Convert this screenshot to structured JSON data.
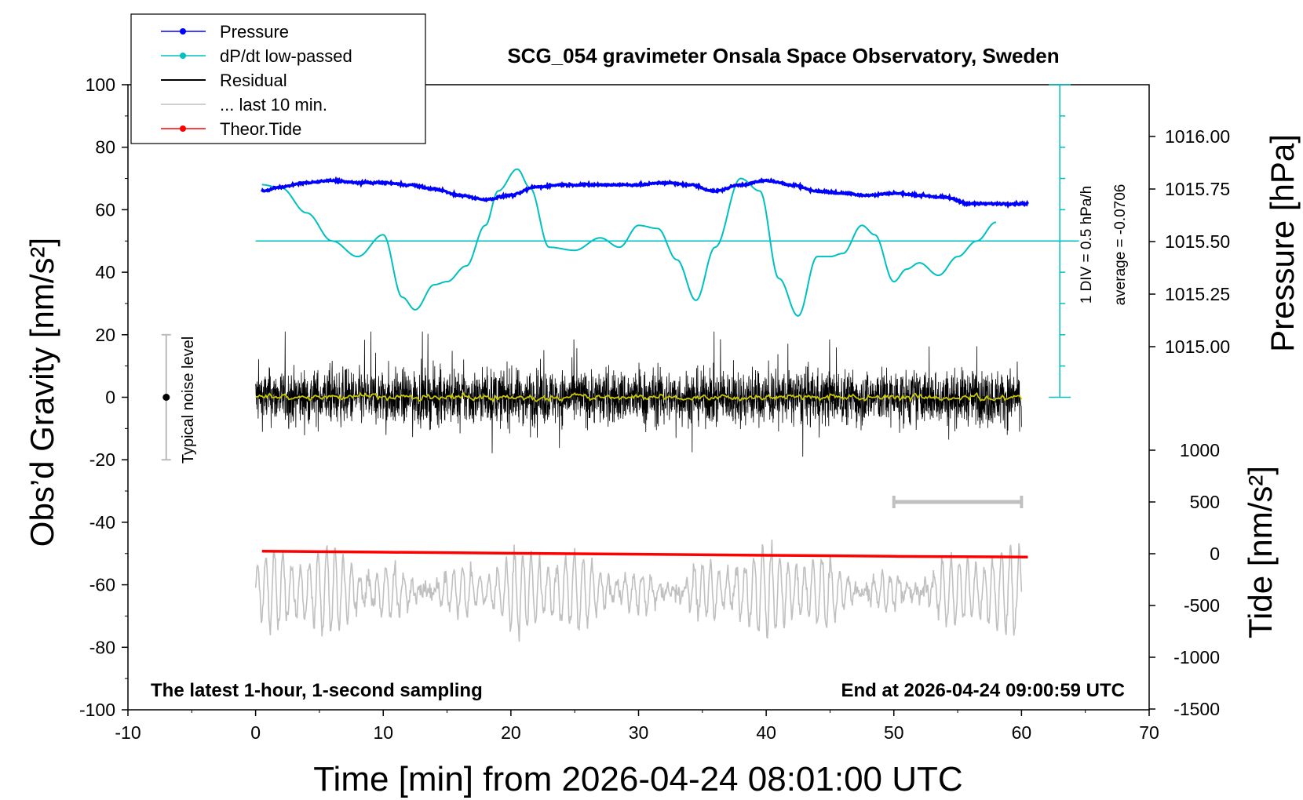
{
  "chart_data": {
    "type": "line",
    "title": "SCG_054 gravimeter Onsala Space Observatory, Sweden",
    "xlabel": "Time [min] from 2026-04-24 08:01:00 UTC",
    "ylabel_left": "Obs’d Gravity [nm/s²]",
    "ylabel_right_top": "Pressure [hPa]",
    "ylabel_right_bottom": "Tide [nm/s²]",
    "xlim": [
      -10,
      70
    ],
    "ylim": [
      -100,
      100
    ],
    "x_ticks": [
      "-10",
      "0",
      "10",
      "20",
      "30",
      "40",
      "50",
      "60",
      "70"
    ],
    "y_ticks": [
      "100",
      "80",
      "60",
      "40",
      "20",
      "0",
      "-20",
      "-40",
      "-60",
      "-80",
      "-100"
    ],
    "pressure_ticks": [
      "1016.00",
      "1015.75",
      "1015.50",
      "1015.25",
      "1015.00"
    ],
    "tide_ticks": [
      "1000",
      "500",
      "0",
      "-500",
      "-1000",
      "-1500"
    ],
    "legend": {
      "placement": "top-left",
      "items": [
        {
          "label": "Pressure",
          "color": "#0000ff",
          "marker": true
        },
        {
          "label": "dP/dt low-passed",
          "color": "#00c0c0",
          "marker": true
        },
        {
          "label": "Residual",
          "color": "#000000",
          "marker": false
        },
        {
          "label": "... last 10 min.",
          "color": "#c0c0c0",
          "marker": false
        },
        {
          "label": "Theor.Tide",
          "color": "#ff0000",
          "marker": true
        }
      ]
    },
    "annotations": {
      "noise_label": "Typical noise level",
      "div_label": "1 DIV = 0.5 hPa/h",
      "average_label": "average = -0.0706",
      "bottom_left": "The latest 1-hour, 1-second sampling",
      "bottom_right": "End at 2026-04-24 09:00:59 UTC"
    },
    "noise_bar": {
      "x": -7,
      "y_low": -20,
      "y_high": 20,
      "center": 0
    },
    "last10_bar": {
      "x_start": 50,
      "x_end": 60,
      "tide_value": 500
    },
    "dpdt_axis": {
      "x": 63,
      "zero_y": 50,
      "y_low": 0,
      "y_high": 100
    },
    "series": [
      {
        "name": "Pressure",
        "color": "#0000ff",
        "axis": "pressure_hPa",
        "x": [
          0.5,
          2,
          4,
          6,
          8,
          10,
          12,
          14,
          16,
          18,
          20,
          22,
          24,
          26,
          28,
          30,
          32,
          34,
          36,
          38,
          40,
          42,
          44,
          46,
          48,
          50,
          52,
          54,
          56,
          58,
          60.5
        ],
        "values": [
          1015.74,
          1015.76,
          1015.78,
          1015.79,
          1015.78,
          1015.78,
          1015.77,
          1015.75,
          1015.72,
          1015.7,
          1015.72,
          1015.76,
          1015.77,
          1015.77,
          1015.77,
          1015.77,
          1015.78,
          1015.77,
          1015.74,
          1015.77,
          1015.79,
          1015.77,
          1015.74,
          1015.73,
          1015.72,
          1015.73,
          1015.72,
          1015.71,
          1015.68,
          1015.68,
          1015.68
        ]
      },
      {
        "name": "dP/dt low-passed",
        "color": "#00c0c0",
        "axis": "gravity",
        "x": [
          0.5,
          2,
          4,
          6,
          8,
          10,
          11.5,
          12.5,
          14,
          15,
          16.5,
          18,
          19,
          20.5,
          21.5,
          23,
          25,
          27,
          28.5,
          30,
          31.5,
          33,
          34.5,
          36,
          38,
          39.5,
          41,
          42.5,
          44,
          45,
          46,
          47.5,
          48.5,
          50,
          51,
          52,
          53.5,
          55,
          56.5,
          58
        ],
        "values": [
          68,
          67,
          59,
          50,
          45,
          52,
          32,
          28,
          36,
          37,
          42,
          55,
          66,
          73,
          67,
          48,
          47,
          51,
          48,
          55,
          54,
          44,
          31,
          48,
          70,
          66,
          38,
          26,
          45,
          45,
          46,
          55,
          52,
          37,
          41,
          43,
          39,
          45,
          50,
          56
        ]
      },
      {
        "name": "Residual",
        "color": "#000000",
        "axis": "gravity",
        "generated": "1-second samples, noise about 0 nm/s2, range approx -19 to 21",
        "x": [
          0,
          60
        ],
        "values": [
          0,
          0
        ],
        "range": [
          -19,
          21
        ]
      },
      {
        "name": "... last 10 min.",
        "color": "#c0c0c0",
        "axis": "gravity",
        "x": [
          0,
          60
        ],
        "values": [
          -62,
          -62
        ],
        "range": [
          -79,
          -44
        ]
      },
      {
        "name": "Theor.Tide",
        "color": "#ff0000",
        "axis": "tide_nm_s2",
        "x": [
          0.5,
          10,
          20,
          30,
          40,
          50,
          60.5
        ],
        "values": [
          25,
          15,
          5,
          -5,
          -15,
          -25,
          -32
        ]
      }
    ]
  }
}
